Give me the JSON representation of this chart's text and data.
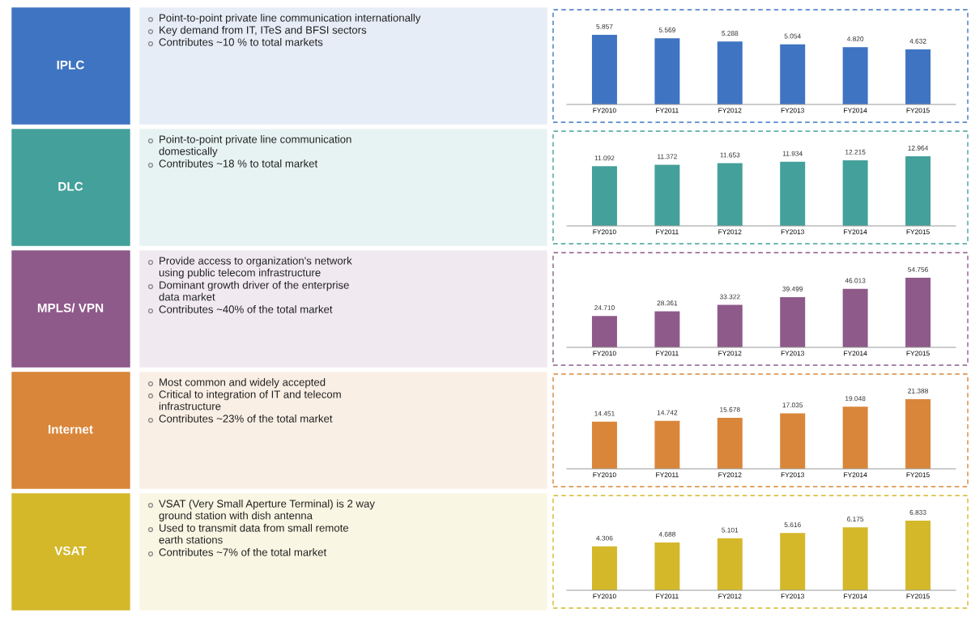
{
  "chart_data": [
    {
      "type": "bar",
      "color": "#3f74c2",
      "categories": [
        "FY2010",
        "FY2011",
        "FY2012",
        "FY2013",
        "FY2014",
        "FY2015"
      ],
      "values": [
        5.857,
        5.569,
        5.288,
        5.054,
        4.82,
        4.632
      ],
      "value_labels": [
        "5.857",
        "5.569",
        "5.288",
        "5.054",
        "4.820",
        "4.632"
      ],
      "annotations": [
        "IPLC",
        "Point-to-point private line communication internationally",
        "Key demand from IT, ITeS and BFSI sectors",
        "Contributes ~10 % to total markets"
      ]
    },
    {
      "type": "bar",
      "color": "#44a09a",
      "categories": [
        "FY2010",
        "FY2011",
        "FY2012",
        "FY2013",
        "FY2014",
        "FY2015"
      ],
      "values": [
        11.092,
        11.372,
        11.653,
        11.934,
        12.215,
        12.964
      ],
      "value_labels": [
        "11.092",
        "11.372",
        "11.653",
        "11.934",
        "12.215",
        "12.964"
      ],
      "annotations": [
        "DLC",
        "Point-to-point private line communication\ndomestically",
        "Contributes ~18 % to total market"
      ]
    },
    {
      "type": "bar",
      "color": "#8e5a8a",
      "categories": [
        "FY2010",
        "FY2011",
        "FY2012",
        "FY2013",
        "FY2014",
        "FY2015"
      ],
      "values": [
        24.71,
        28.361,
        33.322,
        39.499,
        46.013,
        54.756
      ],
      "value_labels": [
        "24.710",
        "28.361",
        "33.322",
        "39.499",
        "46.013",
        "54.756"
      ],
      "annotations": [
        "MPLS/ VPN",
        "Provide access to organization's network\nusing public telecom infrastructure",
        "Dominant growth driver of the enterprise\ndata market",
        "Contributes ~40% of the total market"
      ]
    },
    {
      "type": "bar",
      "color": "#d9863a",
      "categories": [
        "FY2010",
        "FY2011",
        "FY2012",
        "FY2013",
        "FY2014",
        "FY2015"
      ],
      "values": [
        14.451,
        14.742,
        15.678,
        17.035,
        19.048,
        21.388
      ],
      "value_labels": [
        "14.451",
        "14.742",
        "15.678",
        "17.035",
        "19.048",
        "21.388"
      ],
      "annotations": [
        "Internet",
        "Most common and widely accepted",
        "Critical to integration of IT and telecom\ninfrastructure",
        "Contributes ~23% of the total market"
      ]
    },
    {
      "type": "bar",
      "color": "#d4b82a",
      "categories": [
        "FY2010",
        "FY2011",
        "FY2012",
        "FY2013",
        "FY2014",
        "FY2015"
      ],
      "values": [
        4.306,
        4.688,
        5.101,
        5.616,
        6.175,
        6.833
      ],
      "value_labels": [
        "4.306",
        "4.688",
        "5.101",
        "5.616",
        "6.175",
        "6.833"
      ],
      "annotations": [
        "VSAT",
        "VSAT (Very Small Aperture Terminal) is 2 way\nground station with dish antenna",
        "Used to transmit data from small remote\nearth stations",
        "Contributes ~7% of the total market"
      ]
    }
  ]
}
